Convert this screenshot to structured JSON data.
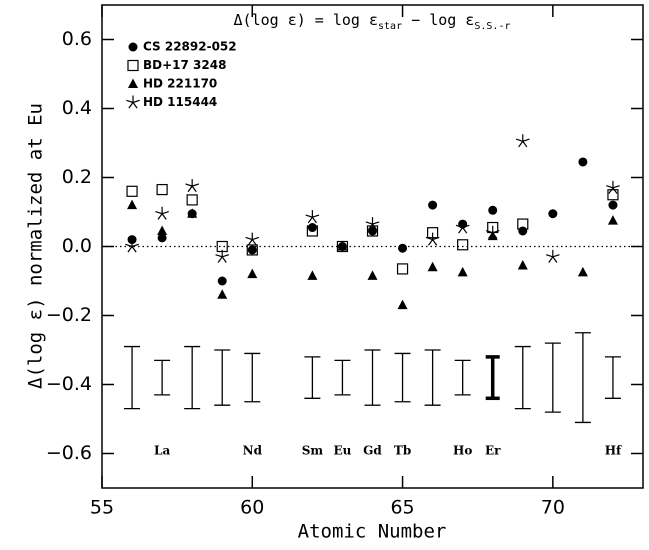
{
  "chart_data": {
    "type": "scatter",
    "title": [
      {
        "text": "Δ(log ε) = log ε"
      },
      {
        "text": "star",
        "sub": true
      },
      {
        "text": " − log ε"
      },
      {
        "text": "S.S.-r",
        "sub": true
      }
    ],
    "xlabel": "Atomic Number",
    "ylabel": "Δ(log ε) normalized at Eu",
    "xlim": [
      55,
      73
    ],
    "ylim": [
      -0.7,
      0.7
    ],
    "xticks": [
      55,
      60,
      65,
      70
    ],
    "yticks": [
      {
        "value": -0.6,
        "label": "−0.6"
      },
      {
        "value": -0.4,
        "label": "−0.4"
      },
      {
        "value": -0.2,
        "label": "−0.2"
      },
      {
        "value": 0,
        "label": "0.0"
      },
      0.2,
      0.4,
      0.6
    ],
    "reference_line": 0,
    "color": "#000000",
    "series": [
      {
        "name": "CS 22892-052",
        "marker": "circle",
        "x": [
          56,
          57,
          58,
          59,
          60,
          62,
          63,
          64,
          65,
          66,
          67,
          68,
          69,
          70,
          71,
          72
        ],
        "values": [
          0.02,
          0.025,
          0.095,
          -0.1,
          -0.01,
          0.055,
          0.0,
          0.045,
          -0.005,
          0.12,
          0.065,
          0.105,
          0.045,
          0.095,
          0.245,
          0.12
        ]
      },
      {
        "name": "BD+17 3248",
        "marker": "square",
        "x": [
          56,
          57,
          58,
          59,
          60,
          62,
          63,
          64,
          65,
          66,
          67,
          68,
          69,
          72
        ],
        "values": [
          0.16,
          0.165,
          0.135,
          0.0,
          -0.01,
          0.045,
          0.0,
          0.045,
          -0.065,
          0.04,
          0.005,
          0.055,
          0.065,
          0.15
        ]
      },
      {
        "name": "HD 221170",
        "marker": "triangle",
        "x": [
          56,
          57,
          58,
          59,
          60,
          62,
          63,
          64,
          65,
          66,
          67,
          68,
          69,
          71,
          72
        ],
        "values": [
          0.12,
          0.045,
          0.095,
          -0.14,
          -0.08,
          -0.085,
          0.0,
          -0.085,
          -0.17,
          -0.06,
          -0.075,
          0.03,
          -0.055,
          -0.075,
          0.075
        ]
      },
      {
        "name": "HD 115444",
        "marker": "star",
        "x": [
          56,
          57,
          58,
          59,
          60,
          62,
          64,
          66,
          67,
          68,
          69,
          70,
          72
        ],
        "values": [
          0.0,
          0.095,
          0.175,
          -0.03,
          0.02,
          0.085,
          0.065,
          0.02,
          0.055,
          0.04,
          0.305,
          -0.03,
          0.17
        ]
      }
    ],
    "error_bars": {
      "x": [
        56,
        57,
        58,
        59,
        60,
        62,
        63,
        64,
        65,
        66,
        67,
        68,
        69,
        70,
        71,
        72
      ],
      "low": [
        -0.47,
        -0.43,
        -0.47,
        -0.46,
        -0.45,
        -0.44,
        -0.43,
        -0.46,
        -0.45,
        -0.46,
        -0.43,
        -0.44,
        -0.47,
        -0.48,
        -0.51,
        -0.44
      ],
      "high": [
        -0.29,
        -0.33,
        -0.29,
        -0.3,
        -0.31,
        -0.32,
        -0.33,
        -0.3,
        -0.31,
        -0.3,
        -0.33,
        -0.32,
        -0.29,
        -0.28,
        -0.25,
        -0.32
      ]
    },
    "element_labels": {
      "x": [
        57,
        60,
        62,
        63,
        64,
        65,
        67,
        68,
        72
      ],
      "labels": [
        "La",
        "Nd",
        "Sm",
        "Eu",
        "Gd",
        "Tb",
        "Ho",
        "Er",
        "Hf"
      ]
    },
    "highlight_x": 68
  }
}
